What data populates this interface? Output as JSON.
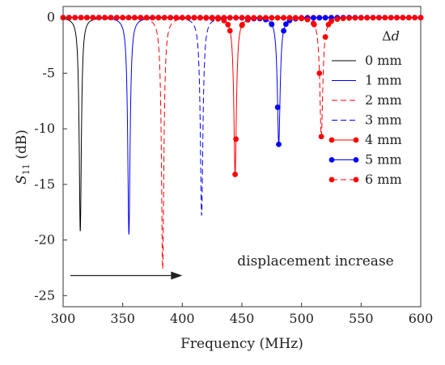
{
  "chart_data": {
    "type": "line",
    "xlabel": "Frequency (MHz)",
    "ylabel_main": "S",
    "ylabel_sub": "11",
    "ylabel_unit": " (dB)",
    "xlim": [
      300,
      600
    ],
    "ylim": [
      -26,
      1
    ],
    "x_ticks": [
      300,
      350,
      400,
      450,
      500,
      550,
      600
    ],
    "y_ticks": [
      0,
      -5,
      -10,
      -15,
      -20,
      -25
    ],
    "grid": false,
    "legend_title_main": "Δ",
    "legend_title_var": "d",
    "legend_placement": "top-right",
    "annotation": {
      "text": "displacement increase",
      "arrow_from": [
        306,
        -23.2
      ],
      "arrow_to": [
        400,
        -23.2
      ]
    },
    "series": [
      {
        "name": "0 mm",
        "color": "#000000",
        "style": "solid",
        "marker": "none",
        "center": 314.4,
        "min": -19.2,
        "width": 1.1
      },
      {
        "name": "1 mm",
        "color": "#0000ff",
        "style": "solid",
        "marker": "none",
        "center": 355.2,
        "min": -19.5,
        "width": 1.2
      },
      {
        "name": "2 mm",
        "color": "#ff0000",
        "style": "dashed",
        "marker": "none",
        "center": 383.5,
        "min": -22.6,
        "width": 1.2
      },
      {
        "name": "3 mm",
        "color": "#0000ff",
        "style": "dashed",
        "marker": "none",
        "center": 416.2,
        "min": -17.8,
        "width": 1.3
      },
      {
        "name": "4 mm",
        "color": "#ff0000",
        "style": "solid",
        "marker": "dot",
        "center": 444.3,
        "min": -14.1,
        "width": 1.3
      },
      {
        "name": "5 mm",
        "color": "#0000ff",
        "style": "solid",
        "marker": "dot",
        "center": 480.9,
        "min": -11.4,
        "width": 1.4
      },
      {
        "name": "6 mm",
        "color": "#ff0000",
        "style": "dashed",
        "marker": "dot",
        "center": 516.6,
        "min": -10.7,
        "width": 1.5
      }
    ]
  }
}
